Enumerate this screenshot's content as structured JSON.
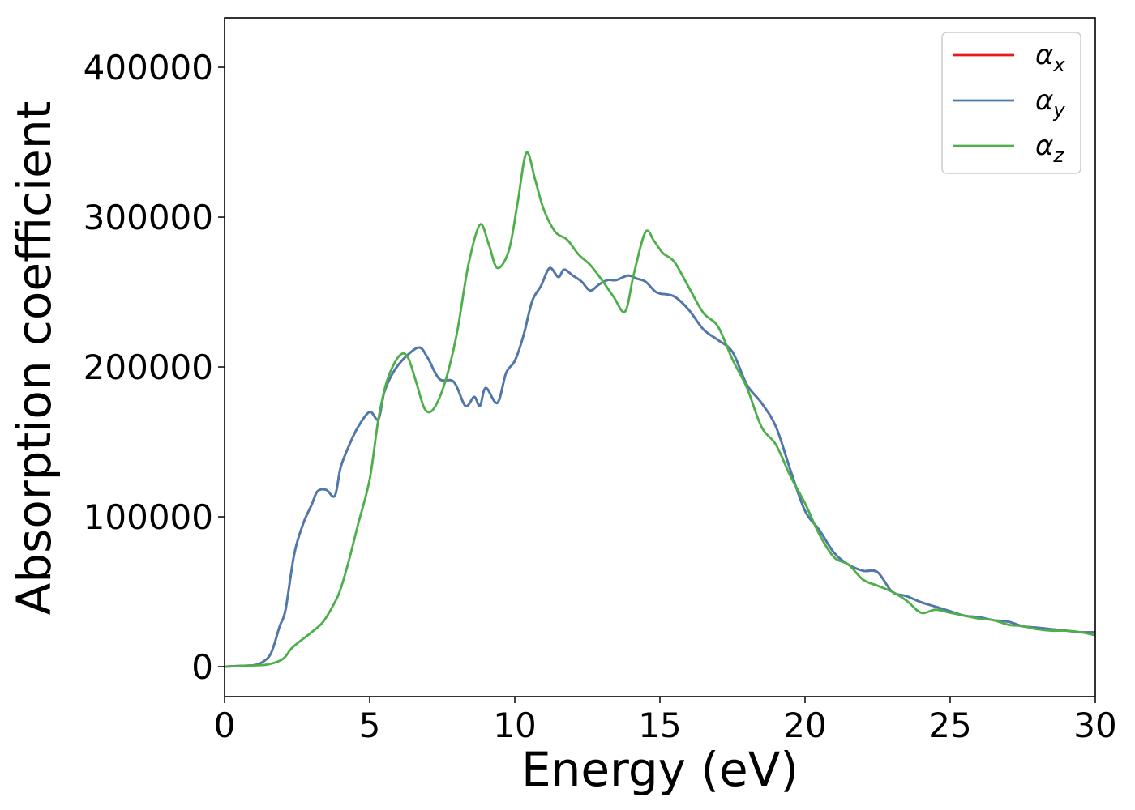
{
  "chart_data": {
    "type": "line",
    "title": "",
    "xlabel": "Energy (eV)",
    "ylabel": "Absorption coefficient",
    "xlim": [
      0,
      30
    ],
    "ylim": [
      -20000,
      433000
    ],
    "xticks": [
      0,
      5,
      10,
      15,
      20,
      25,
      30
    ],
    "yticks": [
      0,
      100000,
      200000,
      300000,
      400000
    ],
    "xtick_labels": [
      "0",
      "5",
      "10",
      "15",
      "20",
      "25",
      "30"
    ],
    "ytick_labels": [
      "0",
      "100000",
      "200000",
      "300000",
      "400000"
    ],
    "grid": false,
    "legend_position": "top-right",
    "series": [
      {
        "name": "α",
        "name_sub": "x",
        "color": "#e41a1c",
        "x": [
          0,
          0.5,
          1.0,
          1.3,
          1.6,
          1.9,
          2.1,
          2.4,
          2.7,
          3.0,
          3.2,
          3.5,
          3.8,
          4.0,
          4.3,
          4.6,
          5.0,
          5.3,
          5.5,
          5.8,
          6.2,
          6.7,
          7.0,
          7.4,
          7.9,
          8.3,
          8.6,
          8.8,
          9.0,
          9.4,
          9.7,
          10.0,
          10.3,
          10.6,
          10.9,
          11.2,
          11.5,
          11.7,
          12.0,
          12.3,
          12.6,
          12.9,
          13.2,
          13.5,
          13.9,
          14.2,
          14.5,
          14.8,
          15.0,
          15.5,
          16.0,
          16.5,
          17.0,
          17.5,
          18.0,
          18.5,
          19.0,
          19.5,
          20.0,
          20.5,
          21.0,
          21.5,
          22.0,
          22.5,
          23.0,
          23.5,
          24.0,
          24.5,
          25.0,
          25.5,
          26.0,
          26.5,
          27.0,
          27.5,
          28.0,
          28.5,
          29.0,
          29.5,
          30.0
        ],
        "values": [
          0,
          500,
          1000,
          3000,
          9000,
          27000,
          38000,
          75000,
          95000,
          108000,
          117000,
          118000,
          114000,
          133000,
          148000,
          160000,
          170000,
          165000,
          183000,
          196000,
          206000,
          213000,
          206000,
          192000,
          190000,
          174000,
          180000,
          174000,
          186000,
          176000,
          196000,
          204000,
          221000,
          244000,
          254000,
          266000,
          260000,
          265000,
          261000,
          257000,
          251000,
          255000,
          258000,
          258000,
          261000,
          259000,
          257000,
          251000,
          249000,
          247000,
          238000,
          225000,
          218000,
          210000,
          188000,
          176000,
          160000,
          131000,
          104000,
          91000,
          76000,
          68000,
          64000,
          63000,
          50000,
          47000,
          43000,
          40000,
          37000,
          34000,
          33000,
          31000,
          30000,
          27000,
          26000,
          25000,
          24000,
          23000,
          23000
        ]
      },
      {
        "name": "α",
        "name_sub": "y",
        "color": "#4a7bb0",
        "x": [
          0,
          0.5,
          1.0,
          1.3,
          1.6,
          1.9,
          2.1,
          2.4,
          2.7,
          3.0,
          3.2,
          3.5,
          3.8,
          4.0,
          4.3,
          4.6,
          5.0,
          5.3,
          5.5,
          5.8,
          6.2,
          6.7,
          7.0,
          7.4,
          7.9,
          8.3,
          8.6,
          8.8,
          9.0,
          9.4,
          9.7,
          10.0,
          10.3,
          10.6,
          10.9,
          11.2,
          11.5,
          11.7,
          12.0,
          12.3,
          12.6,
          12.9,
          13.2,
          13.5,
          13.9,
          14.2,
          14.5,
          14.8,
          15.0,
          15.5,
          16.0,
          16.5,
          17.0,
          17.5,
          18.0,
          18.5,
          19.0,
          19.5,
          20.0,
          20.5,
          21.0,
          21.5,
          22.0,
          22.5,
          23.0,
          23.5,
          24.0,
          24.5,
          25.0,
          25.5,
          26.0,
          26.5,
          27.0,
          27.5,
          28.0,
          28.5,
          29.0,
          29.5,
          30.0
        ],
        "values": [
          0,
          500,
          1000,
          3000,
          9000,
          27000,
          38000,
          75000,
          95000,
          108000,
          117000,
          118000,
          114000,
          133000,
          148000,
          160000,
          170000,
          165000,
          183000,
          196000,
          206000,
          213000,
          206000,
          192000,
          190000,
          174000,
          180000,
          174000,
          186000,
          176000,
          196000,
          204000,
          221000,
          244000,
          254000,
          266000,
          260000,
          265000,
          261000,
          257000,
          251000,
          255000,
          258000,
          258000,
          261000,
          259000,
          257000,
          251000,
          249000,
          247000,
          238000,
          225000,
          218000,
          210000,
          188000,
          176000,
          160000,
          131000,
          104000,
          91000,
          76000,
          68000,
          64000,
          63000,
          50000,
          47000,
          43000,
          40000,
          37000,
          34000,
          33000,
          31000,
          30000,
          27000,
          26000,
          25000,
          24000,
          23000,
          23000
        ]
      },
      {
        "name": "α",
        "name_sub": "z",
        "color": "#4daf4a",
        "x": [
          0,
          0.5,
          1.0,
          1.5,
          2.0,
          2.3,
          2.6,
          3.0,
          3.4,
          3.8,
          4.0,
          4.3,
          4.6,
          5.0,
          5.3,
          5.6,
          6.0,
          6.3,
          6.6,
          6.9,
          7.2,
          7.6,
          8.0,
          8.4,
          8.8,
          9.1,
          9.4,
          9.8,
          10.1,
          10.4,
          10.7,
          11.0,
          11.4,
          11.8,
          12.2,
          12.6,
          13.0,
          13.4,
          13.8,
          14.1,
          14.5,
          14.8,
          15.1,
          15.5,
          16.0,
          16.5,
          17.0,
          17.5,
          18.0,
          18.5,
          19.0,
          19.5,
          20.0,
          20.5,
          21.0,
          21.5,
          22.0,
          22.5,
          23.0,
          23.5,
          24.0,
          24.5,
          25.0,
          25.5,
          26.0,
          26.5,
          27.0,
          27.5,
          28.0,
          28.5,
          29.0,
          29.5,
          30.0
        ],
        "values": [
          0,
          300,
          800,
          1500,
          5000,
          12000,
          17000,
          23000,
          30000,
          43000,
          52000,
          72000,
          95000,
          125000,
          165000,
          191000,
          207000,
          207000,
          190000,
          172000,
          172000,
          190000,
          222000,
          268000,
          295000,
          282000,
          266000,
          278000,
          310000,
          343000,
          325000,
          305000,
          290000,
          285000,
          275000,
          268000,
          258000,
          247000,
          237000,
          262000,
          290000,
          284000,
          276000,
          270000,
          253000,
          236000,
          227000,
          205000,
          186000,
          160000,
          148000,
          127000,
          109000,
          88000,
          73000,
          68000,
          58000,
          54000,
          50000,
          44000,
          36000,
          38000,
          36000,
          34000,
          32000,
          31000,
          28000,
          27000,
          25000,
          24000,
          24000,
          23000,
          21000
        ]
      }
    ]
  }
}
